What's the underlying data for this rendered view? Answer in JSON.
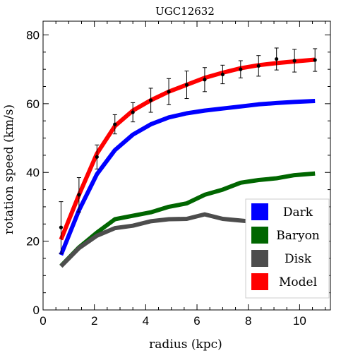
{
  "chart_data": {
    "type": "line",
    "title": "UGC12632",
    "xlabel": "radius (kpc)",
    "ylabel": "rotation speed (km/s)",
    "xlim": [
      0,
      11.2
    ],
    "ylim": [
      0,
      84
    ],
    "xticks": [
      0,
      2,
      4,
      6,
      8,
      10
    ],
    "yticks": [
      0,
      20,
      40,
      60,
      80
    ],
    "grid": false,
    "legend_position": "bottom-right",
    "series": [
      {
        "name": "Dark",
        "color": "#0000ff",
        "x": [
          0.7,
          1.4,
          2.1,
          2.8,
          3.5,
          4.2,
          4.9,
          5.6,
          6.3,
          7.0,
          7.7,
          8.4,
          9.1,
          9.8,
          10.6
        ],
        "y": [
          16,
          29,
          39.5,
          46.5,
          51,
          54,
          56,
          57.2,
          58,
          58.6,
          59.2,
          59.8,
          60.2,
          60.5,
          60.8
        ]
      },
      {
        "name": "Baryon",
        "color": "#006600",
        "x": [
          0.7,
          1.4,
          2.1,
          2.8,
          3.5,
          4.2,
          4.9,
          5.6,
          6.3,
          7.0,
          7.7,
          8.4,
          9.1,
          9.8,
          10.6
        ],
        "y": [
          12.8,
          18.2,
          22.5,
          26.4,
          27.4,
          28.4,
          30,
          31,
          33.5,
          35,
          37,
          37.8,
          38.3,
          39.2,
          39.7
        ]
      },
      {
        "name": "Disk",
        "color": "#4d4d4d",
        "x": [
          0.7,
          1.4,
          2.1,
          2.8,
          3.5,
          4.2,
          4.9,
          5.6,
          6.3,
          7.0,
          7.7,
          8.4,
          9.1,
          9.8,
          10.6
        ],
        "y": [
          12.7,
          18,
          21.6,
          23.8,
          24.5,
          25.8,
          26.4,
          26.5,
          27.8,
          26.5,
          26,
          25.5,
          25.2,
          25,
          24.8
        ]
      },
      {
        "name": "Model",
        "color": "#ff0000",
        "x": [
          0.7,
          1.4,
          2.1,
          2.8,
          3.5,
          4.2,
          4.9,
          5.6,
          6.3,
          7.0,
          7.7,
          8.4,
          9.1,
          9.8,
          10.6
        ],
        "y": [
          20.5,
          33.5,
          45.5,
          53.5,
          58,
          61,
          63.5,
          65.5,
          67.5,
          69,
          70.3,
          71.2,
          71.8,
          72.3,
          72.8
        ]
      }
    ],
    "observations": {
      "name": "data",
      "color": "#000000",
      "x": [
        0.7,
        1.4,
        2.1,
        2.8,
        3.5,
        4.2,
        4.9,
        5.6,
        6.3,
        7.0,
        7.7,
        8.4,
        9.1,
        9.8,
        10.6
      ],
      "y": [
        24,
        33.5,
        44.5,
        54,
        57.5,
        61,
        63.5,
        65.5,
        67,
        68.5,
        70,
        71,
        73,
        72.5,
        72.7
      ],
      "err": [
        7.5,
        5,
        3.5,
        2.8,
        2.8,
        3.5,
        3.8,
        4,
        3.5,
        2.7,
        2.5,
        3,
        3.2,
        3.3,
        3.3
      ]
    }
  }
}
